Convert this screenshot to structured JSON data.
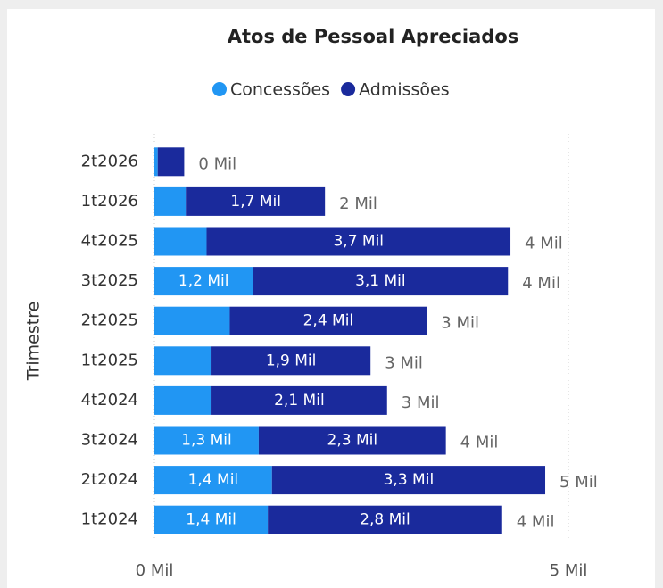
{
  "chart_data": {
    "type": "stacked_bar_horizontal",
    "title": "Atos de Pessoal Apreciados",
    "y_axis_label": "Trimestre",
    "categories": [
      "2t2026",
      "1t2026",
      "4t2025",
      "3t2025",
      "2t2025",
      "1t2025",
      "4t2024",
      "3t2024",
      "2t2024",
      "1t2024"
    ],
    "series": [
      {
        "name": "Concessões",
        "color": "#2196f3",
        "values": [
          0.04,
          0.39,
          0.63,
          1.19,
          0.91,
          0.69,
          0.69,
          1.26,
          1.42,
          1.37
        ],
        "value_labels": [
          null,
          null,
          null,
          "1,2 Mil",
          null,
          null,
          null,
          "1,3 Mil",
          "1,4 Mil",
          "1,4 Mil"
        ]
      },
      {
        "name": "Admissões",
        "color": "#1a2a9c",
        "values": [
          0.32,
          1.67,
          3.67,
          3.08,
          2.38,
          1.92,
          2.12,
          2.26,
          3.3,
          2.83
        ],
        "value_labels": [
          null,
          "1,7 Mil",
          "3,7 Mil",
          "3,1 Mil",
          "2,4 Mil",
          "1,9 Mil",
          "2,1 Mil",
          "2,3 Mil",
          "3,3 Mil",
          "2,8 Mil"
        ]
      }
    ],
    "totals": {
      "values": [
        0.36,
        2.06,
        4.3,
        4.27,
        3.29,
        2.61,
        2.81,
        3.52,
        4.72,
        4.2
      ],
      "value_labels": [
        "0 Mil",
        "2 Mil",
        "4 Mil",
        "4 Mil",
        "3 Mil",
        "3 Mil",
        "3 Mil",
        "4 Mil",
        "5 Mil",
        "4 Mil"
      ]
    },
    "xlim": [
      0,
      5
    ],
    "xticks": [
      {
        "value": 0,
        "label": "0 Mil"
      },
      {
        "value": 5,
        "label": "5 Mil"
      }
    ],
    "grid": true,
    "legend": "top"
  }
}
